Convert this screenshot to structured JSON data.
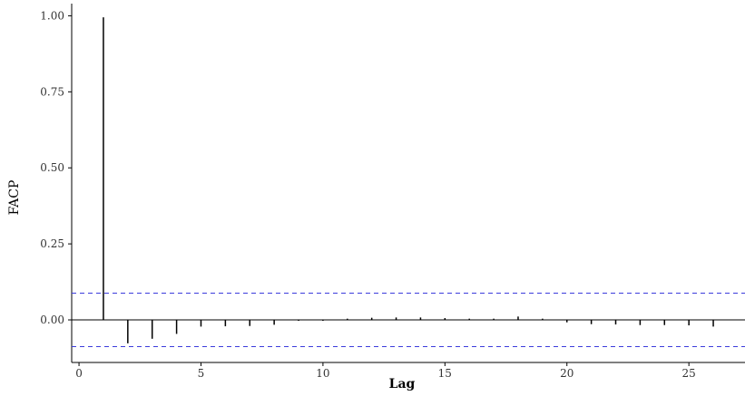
{
  "chart_data": {
    "type": "bar",
    "title": "",
    "xlabel": "Lag",
    "ylabel": "FACP",
    "xlim": [
      -0.3,
      27.3
    ],
    "ylim": [
      -0.14,
      1.04
    ],
    "x_ticks": [
      0,
      5,
      10,
      15,
      20,
      25
    ],
    "y_ticks": [
      0.0,
      0.25,
      0.5,
      0.75,
      1.0
    ],
    "x_tick_labels": [
      "0",
      "5",
      "10",
      "15",
      "20",
      "25"
    ],
    "y_tick_labels": [
      "0.00",
      "0.25",
      "0.50",
      "0.75",
      "1.00"
    ],
    "grid": false,
    "legend": "none",
    "confidence_bounds": [
      0.088,
      -0.088
    ],
    "series": [
      {
        "lags": [
          1,
          2,
          3,
          4,
          5,
          6,
          7,
          8,
          9,
          10,
          11,
          12,
          13,
          14,
          15,
          16,
          17,
          18,
          19,
          20,
          21,
          22,
          23,
          24,
          25,
          26
        ],
        "values": [
          0.995,
          -0.077,
          -0.062,
          -0.046,
          -0.022,
          -0.021,
          -0.02,
          -0.016,
          -0.003,
          -0.003,
          0.004,
          0.007,
          0.008,
          0.008,
          0.006,
          0.004,
          0.004,
          0.011,
          0.004,
          -0.008,
          -0.014,
          -0.015,
          -0.017,
          -0.017,
          -0.018,
          -0.022
        ]
      }
    ],
    "colors": {
      "spike": "#000000",
      "bounds": "#3b3bdc",
      "axis": "#000000",
      "zero_line": "#000000"
    }
  }
}
